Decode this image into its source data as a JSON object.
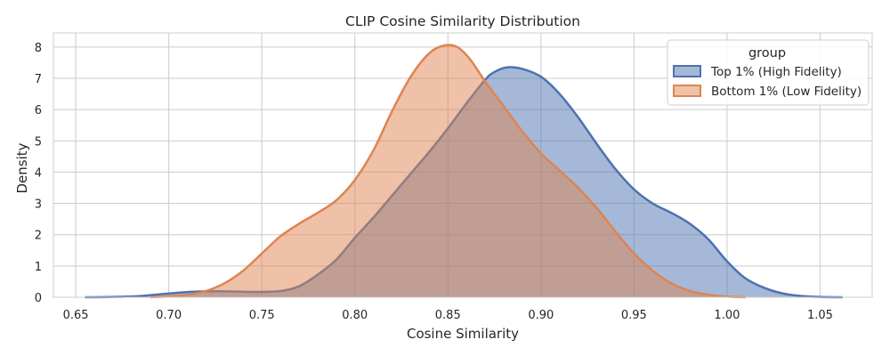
{
  "chart_data": {
    "type": "area",
    "title": "CLIP Cosine Similarity Distribution",
    "xlabel": "Cosine Similarity",
    "ylabel": "Density",
    "xlim": [
      0.638,
      1.078
    ],
    "ylim": [
      0,
      8.45
    ],
    "xticks": [
      0.65,
      0.7,
      0.75,
      0.8,
      0.85,
      0.9,
      0.95,
      1.0,
      1.05
    ],
    "xtick_labels": [
      "0.65",
      "0.70",
      "0.75",
      "0.80",
      "0.85",
      "0.90",
      "0.95",
      "1.00",
      "1.05"
    ],
    "yticks": [
      0,
      1,
      2,
      3,
      4,
      5,
      6,
      7,
      8
    ],
    "ytick_labels": [
      "0",
      "1",
      "2",
      "3",
      "4",
      "5",
      "6",
      "7",
      "8"
    ],
    "grid": true,
    "legend": {
      "title": "group",
      "placement": "top-right"
    },
    "series": [
      {
        "name": "Top 1% (High Fidelity)",
        "color": "#4c72b0",
        "points": [
          [
            0.655,
            0.0
          ],
          [
            0.67,
            0.01
          ],
          [
            0.685,
            0.04
          ],
          [
            0.7,
            0.12
          ],
          [
            0.715,
            0.18
          ],
          [
            0.73,
            0.19
          ],
          [
            0.745,
            0.17
          ],
          [
            0.76,
            0.2
          ],
          [
            0.77,
            0.35
          ],
          [
            0.78,
            0.72
          ],
          [
            0.79,
            1.2
          ],
          [
            0.8,
            1.9
          ],
          [
            0.81,
            2.55
          ],
          [
            0.82,
            3.25
          ],
          [
            0.83,
            3.95
          ],
          [
            0.84,
            4.65
          ],
          [
            0.85,
            5.4
          ],
          [
            0.86,
            6.2
          ],
          [
            0.87,
            6.95
          ],
          [
            0.875,
            7.2
          ],
          [
            0.882,
            7.35
          ],
          [
            0.89,
            7.3
          ],
          [
            0.9,
            7.05
          ],
          [
            0.91,
            6.5
          ],
          [
            0.92,
            5.75
          ],
          [
            0.93,
            4.9
          ],
          [
            0.94,
            4.1
          ],
          [
            0.95,
            3.45
          ],
          [
            0.96,
            3.0
          ],
          [
            0.97,
            2.7
          ],
          [
            0.98,
            2.35
          ],
          [
            0.99,
            1.85
          ],
          [
            1.0,
            1.15
          ],
          [
            1.01,
            0.6
          ],
          [
            1.02,
            0.3
          ],
          [
            1.03,
            0.12
          ],
          [
            1.04,
            0.04
          ],
          [
            1.05,
            0.01
          ],
          [
            1.062,
            0.0
          ]
        ]
      },
      {
        "name": "Bottom 1% (Low Fidelity)",
        "color": "#dd8452",
        "points": [
          [
            0.69,
            0.0
          ],
          [
            0.7,
            0.03
          ],
          [
            0.71,
            0.08
          ],
          [
            0.72,
            0.2
          ],
          [
            0.73,
            0.45
          ],
          [
            0.74,
            0.85
          ],
          [
            0.75,
            1.4
          ],
          [
            0.76,
            1.95
          ],
          [
            0.77,
            2.35
          ],
          [
            0.78,
            2.7
          ],
          [
            0.79,
            3.1
          ],
          [
            0.8,
            3.75
          ],
          [
            0.81,
            4.7
          ],
          [
            0.82,
            5.95
          ],
          [
            0.83,
            7.05
          ],
          [
            0.84,
            7.8
          ],
          [
            0.848,
            8.05
          ],
          [
            0.855,
            8.0
          ],
          [
            0.862,
            7.6
          ],
          [
            0.87,
            6.9
          ],
          [
            0.88,
            6.1
          ],
          [
            0.89,
            5.3
          ],
          [
            0.9,
            4.6
          ],
          [
            0.91,
            4.05
          ],
          [
            0.92,
            3.5
          ],
          [
            0.93,
            2.85
          ],
          [
            0.94,
            2.1
          ],
          [
            0.95,
            1.4
          ],
          [
            0.96,
            0.85
          ],
          [
            0.97,
            0.45
          ],
          [
            0.98,
            0.2
          ],
          [
            0.99,
            0.08
          ],
          [
            1.0,
            0.02
          ],
          [
            1.01,
            0.0
          ]
        ]
      }
    ]
  }
}
